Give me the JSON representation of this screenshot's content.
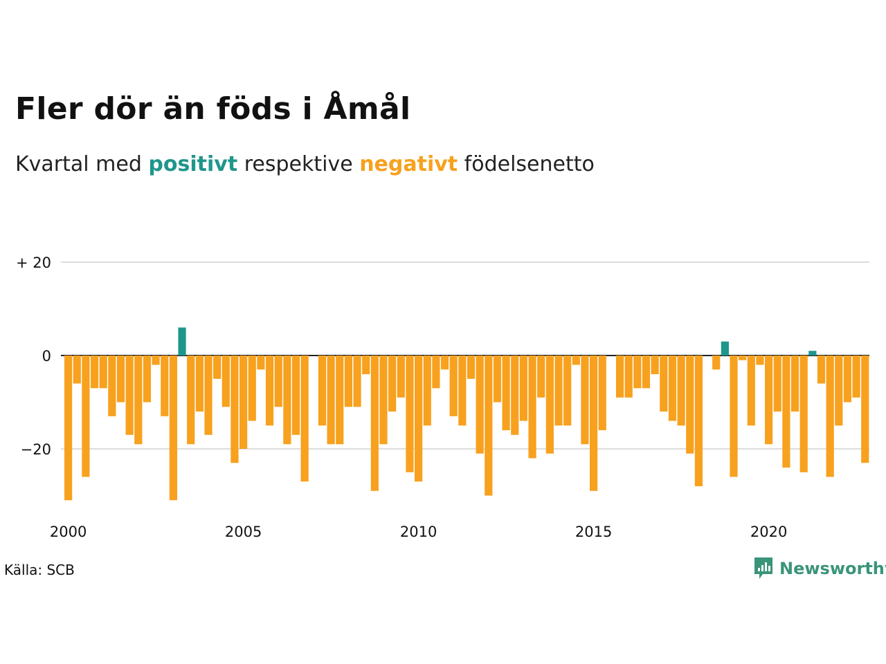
{
  "title": "Fler dör än föds i Åmål",
  "subtitle": {
    "prefix": "Kvartal med ",
    "positive_word": "positivt",
    "middle": " respektive ",
    "negative_word": "negativt",
    "suffix": " födelsenetto"
  },
  "source": "Källa: SCB",
  "brand": "Newsworthy",
  "colors": {
    "positive": "#1f968b",
    "negative": "#f7a11f",
    "grid": "#dddddd",
    "axis": "#222222",
    "brand": "#3a9479"
  },
  "chart_data": {
    "type": "bar",
    "x_start": "2000 Q1",
    "series": [
      {
        "values": [
          -31,
          -6,
          -26,
          -7,
          -7,
          -13,
          -10,
          -17,
          -19,
          -10,
          -2,
          -13,
          -31,
          6,
          -19,
          -12,
          -17,
          -5,
          -11,
          -23,
          -20,
          -14,
          -3,
          -15,
          -11,
          -19,
          -17,
          -27,
          0,
          -15,
          -19,
          -19,
          -11,
          -11,
          -4,
          -29,
          -19,
          -12,
          -9,
          -25,
          -27,
          -15,
          -7,
          -3,
          -13,
          -15,
          -5,
          -21,
          -30,
          -10,
          -16,
          -17,
          -14,
          -22,
          -9,
          -21,
          -15,
          -15,
          -2,
          -19,
          -29,
          -16,
          0,
          -9,
          -9,
          -7,
          -7,
          -4,
          -12,
          -14,
          -15,
          -21,
          -28,
          0,
          -3,
          3,
          -26,
          -1,
          -15,
          -2,
          -19,
          -12,
          -24,
          -12,
          -25,
          1,
          -6,
          -26,
          -15,
          -10,
          -9,
          -23
        ]
      }
    ],
    "x_ticks": [
      "2000",
      "2005",
      "2010",
      "2015",
      "2020"
    ],
    "y_ticks": [
      {
        "value": 20,
        "label": "+ 20"
      },
      {
        "value": 0,
        "label": "0"
      },
      {
        "value": -20,
        "label": "−20"
      }
    ],
    "ylim": [
      -35,
      20
    ],
    "grid": true
  }
}
